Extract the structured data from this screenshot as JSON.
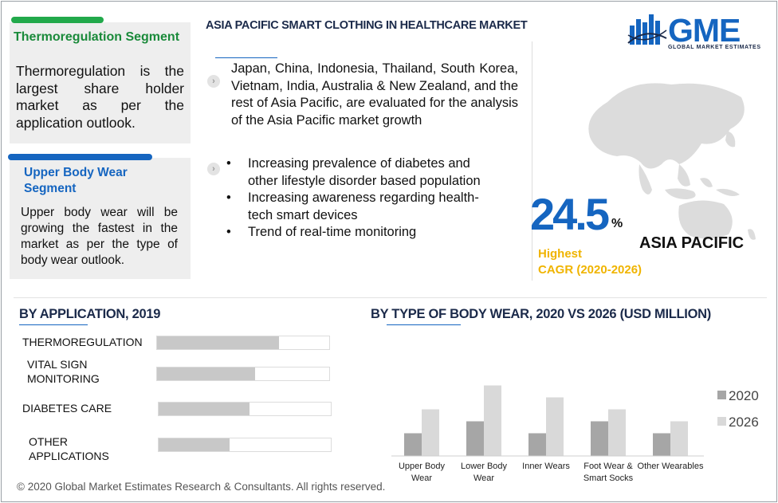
{
  "header": {
    "title": "ASIA PACIFIC SMART CLOTHING IN HEALTHCARE MARKET",
    "logo_main": "GME",
    "logo_sub": "GLOBAL MARKET ESTIMATES"
  },
  "cards": [
    {
      "title": "Thermoregulation Segment",
      "text": "Thermoregulation is the largest share holder market as per the application outlook."
    },
    {
      "title_line1": "Upper Body Wear",
      "title_line2": "Segment",
      "text": "Upper body wear will be growing the fastest in the market as per the type of body wear outlook."
    }
  ],
  "overview": {
    "paragraph": "Japan, China, Indonesia, Thailand, South Korea, Vietnam, India, Australia & New Zealand, and the rest of Asia Pacific, are evaluated for the analysis of the Asia Pacific market growth",
    "bullet_char": "•",
    "bullets": [
      "Increasing prevalence of diabetes and other lifestyle disorder based population",
      "Increasing awareness regarding health-tech smart devices",
      "Trend of real-time monitoring"
    ]
  },
  "highlight": {
    "value": "24.5",
    "unit": "%",
    "label_line1": "Highest",
    "label_line2": "CAGR (2020-2026)",
    "region": "ASIA PACIFIC"
  },
  "chart_data": [
    {
      "type": "bar",
      "orientation": "horizontal",
      "title": "BY  APPLICATION, 2019",
      "categories": [
        [
          "THERMOREGULATION"
        ],
        [
          "VITAL SIGN",
          "MONITORING"
        ],
        [
          "DIABETES CARE"
        ],
        [
          "OTHER",
          "APPLICATIONS"
        ]
      ],
      "values": [
        71,
        57,
        53,
        41
      ],
      "xlim": [
        0,
        100
      ],
      "grid": false,
      "legend": "none"
    },
    {
      "type": "bar",
      "orientation": "vertical",
      "title": "BY TYPE OF BODY WEAR,  2020 VS 2026 (USD MILLION)",
      "categories": [
        [
          "Upper Body",
          "Wear"
        ],
        [
          "Lower Body",
          "Wear"
        ],
        [
          "Inner Wears"
        ],
        [
          "Foot Wear &",
          "Smart Socks"
        ],
        [
          "Other Wearables"
        ]
      ],
      "series": [
        {
          "name": "2020",
          "values": [
            19,
            29,
            19,
            29,
            19
          ],
          "color": "#a6a6a6"
        },
        {
          "name": "2026",
          "values": [
            39,
            59,
            49,
            39,
            29
          ],
          "color": "#d9d9d9"
        }
      ],
      "ylim": [
        0,
        60
      ],
      "grid": false,
      "legend": "right"
    }
  ],
  "footer": {
    "copyright": "© 2020 Global Market Estimates Research & Consultants. All rights reserved."
  }
}
